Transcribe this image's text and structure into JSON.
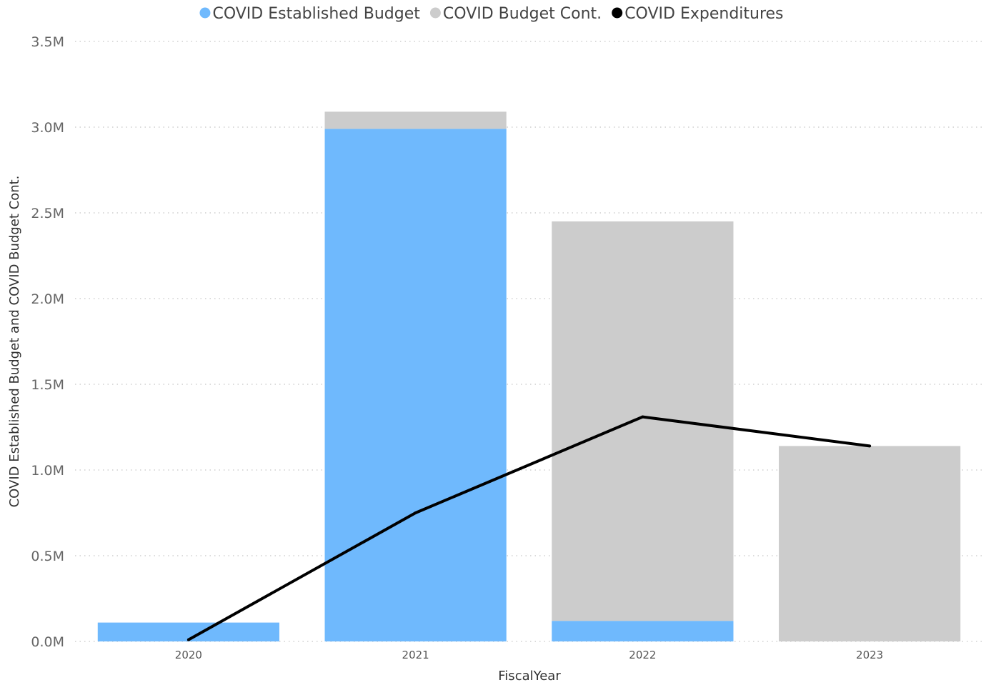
{
  "chart_data": {
    "type": "bar",
    "stacked": true,
    "categories": [
      "2020",
      "2021",
      "2022",
      "2023"
    ],
    "series": [
      {
        "name": "COVID Established Budget",
        "kind": "bar",
        "color": "#6fb9fd",
        "values": [
          110000,
          2990000,
          120000,
          0
        ]
      },
      {
        "name": "COVID Budget Cont.",
        "kind": "bar",
        "color": "#cccccc",
        "values": [
          0,
          100000,
          2330000,
          1140000
        ]
      },
      {
        "name": "COVID Expenditures",
        "kind": "line",
        "color": "#000000",
        "values": [
          10000,
          750000,
          1310000,
          1140000
        ]
      }
    ],
    "xlabel": "FiscalYear",
    "ylabel": "COVID Established Budget and COVID Budget Cont.",
    "ylim": [
      0,
      3500000
    ],
    "yticks": [
      "0.0M",
      "0.5M",
      "1.0M",
      "1.5M",
      "2.0M",
      "2.5M",
      "3.0M",
      "3.5M"
    ],
    "grid": true,
    "legend_position": "top-center"
  }
}
